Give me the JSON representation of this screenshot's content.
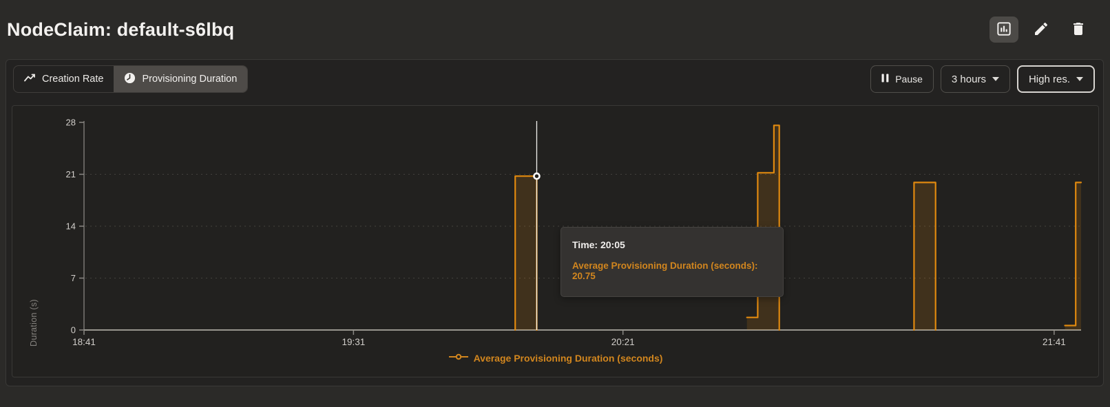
{
  "header": {
    "title": "NodeClaim: default-s6lbq"
  },
  "toolbar": {
    "tabs": [
      {
        "label": "Creation Rate",
        "icon": "trend-line-icon",
        "selected": false
      },
      {
        "label": "Provisioning Duration",
        "icon": "clock-icon",
        "selected": true
      }
    ],
    "pause_label": "Pause",
    "time_range": "3 hours",
    "resolution": "High res."
  },
  "tooltip": {
    "time": "Time: 20:05",
    "value": "Average Provisioning Duration (seconds): 20.75"
  },
  "legend_label": "Average Provisioning Duration (seconds)",
  "colors": {
    "accent": "#d2861e",
    "series_stroke": "#e0890f",
    "series_fill": "rgba(224,137,15,0.16)",
    "cursor": "#f3f2ef",
    "grid": "#44423e",
    "axis": "#99968f",
    "tick_text": "#d2cfcb"
  },
  "chart_data": {
    "type": "area",
    "step": true,
    "title": "",
    "ylabel": "Duration (s)",
    "ylim": [
      0,
      28
    ],
    "yticks": [
      0,
      7,
      14,
      21,
      28
    ],
    "x_start": "18:41",
    "x_end": "21:46",
    "xticks": [
      "18:41",
      "19:31",
      "20:21",
      "21:41"
    ],
    "grid": "dashed-horizontal",
    "legend_position": "bottom",
    "series": [
      {
        "name": "Average Provisioning Duration (seconds)",
        "segments": [
          [
            [
              "20:01",
              0
            ],
            [
              "20:01",
              20.75
            ],
            [
              "20:05",
              20.75
            ],
            [
              "20:05",
              0
            ]
          ],
          [
            [
              "20:44",
              1.7
            ],
            [
              "20:46",
              1.7
            ],
            [
              "20:46",
              21.2
            ],
            [
              "20:49",
              21.2
            ],
            [
              "20:49",
              27.6
            ],
            [
              "20:50",
              27.6
            ],
            [
              "20:50",
              0
            ]
          ],
          [
            [
              "21:15",
              0
            ],
            [
              "21:15",
              19.9
            ],
            [
              "21:19",
              19.9
            ],
            [
              "21:19",
              0
            ]
          ],
          [
            [
              "21:43",
              0.6
            ],
            [
              "21:45",
              0.6
            ],
            [
              "21:45",
              19.9
            ],
            [
              "21:46",
              19.9
            ]
          ]
        ]
      }
    ],
    "highlight": {
      "time": "20:05",
      "value": 20.75
    }
  }
}
